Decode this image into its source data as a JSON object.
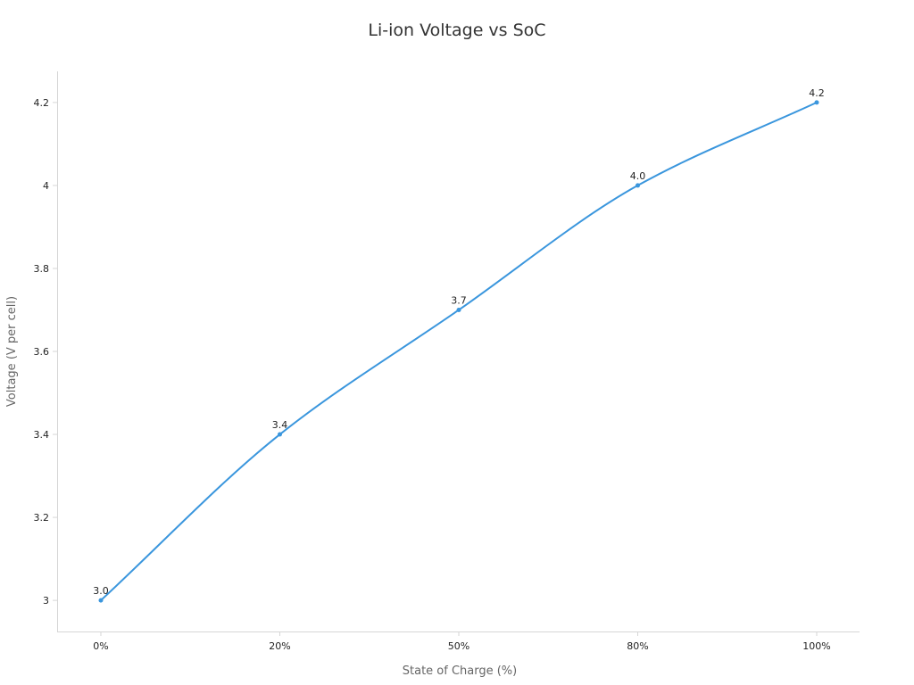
{
  "chart_data": {
    "type": "line",
    "title": "Li-ion Voltage vs SoC",
    "xlabel": "State of Charge (%)",
    "ylabel": "Voltage (V per cell)",
    "categories": [
      "0%",
      "20%",
      "50%",
      "80%",
      "100%"
    ],
    "series": [
      {
        "values": [
          3.0,
          3.4,
          3.7,
          4.0,
          4.2
        ],
        "data_labels": [
          "3.0",
          "3.4",
          "3.7",
          "4.0",
          "4.2"
        ],
        "color": "#3a96dd"
      }
    ],
    "y_ticks": [
      3,
      3.2,
      3.4,
      3.6,
      3.8,
      4,
      4.2
    ],
    "y_tick_labels": [
      "3",
      "3.2",
      "3.4",
      "3.6",
      "3.8",
      "4",
      "4.2"
    ],
    "ylim": [
      2.925,
      4.275
    ],
    "grid": false,
    "smooth": true
  }
}
